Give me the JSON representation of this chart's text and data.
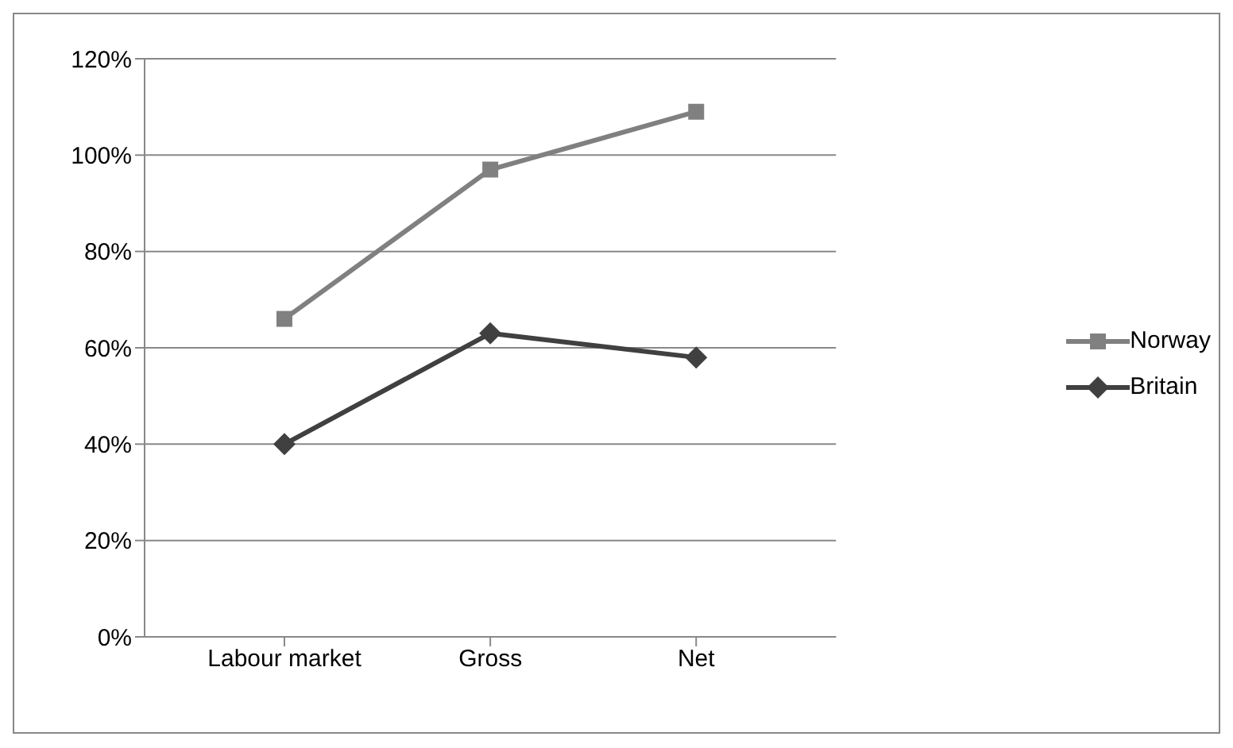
{
  "chart_data": {
    "type": "line",
    "categories": [
      "Labour market",
      "Gross",
      "Net"
    ],
    "series": [
      {
        "name": "Norway",
        "color": "#808080",
        "values": [
          66,
          97,
          109
        ],
        "marker": "square"
      },
      {
        "name": "Britain",
        "color": "#404040",
        "values": [
          40,
          63,
          58
        ],
        "marker": "diamond"
      }
    ],
    "ylim": [
      0,
      120
    ],
    "yticks": [
      {
        "value": 0,
        "label": "0%"
      },
      {
        "value": 20,
        "label": "20%"
      },
      {
        "value": 40,
        "label": "40%"
      },
      {
        "value": 60,
        "label": "60%"
      },
      {
        "value": 80,
        "label": "80%"
      },
      {
        "value": 100,
        "label": "100%"
      },
      {
        "value": 120,
        "label": "120%"
      }
    ],
    "grid": "y",
    "legend": "right"
  }
}
